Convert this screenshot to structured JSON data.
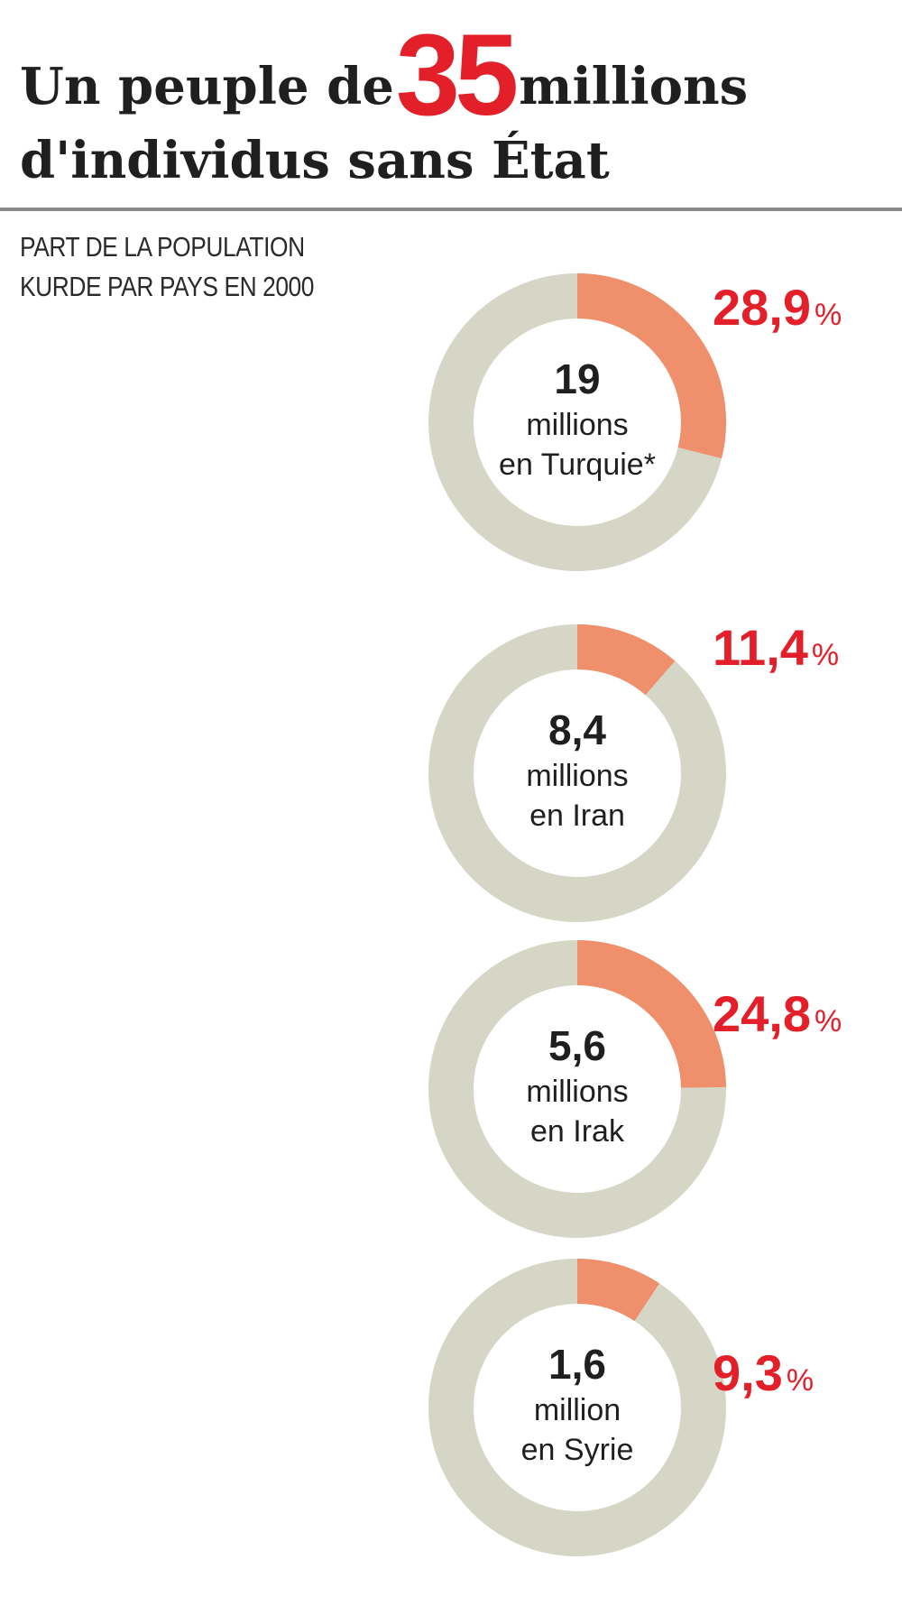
{
  "header": {
    "title_part1": "Un peuple de",
    "title_number": "35",
    "title_part2": "millions",
    "title_line2": "d'individus sans État",
    "subtitle_line1": "PART DE LA POPULATION",
    "subtitle_line2": "KURDE PAR PAYS EN 2000"
  },
  "colors": {
    "accent": "#e3202a",
    "slice": "#ef8f6b",
    "ring": "#d6d6c7",
    "text": "#1f1f1f"
  },
  "chart_data": {
    "type": "pie",
    "title": "Un peuple de 35 millions d'individus sans État",
    "subtitle": "PART DE LA POPULATION KURDE PAR PAYS EN 2000",
    "items": [
      {
        "country": "Turquie",
        "population_number": "19",
        "unit": "millions",
        "place": "en Turquie*",
        "share_percent": 28.9,
        "percent_label": "28,9"
      },
      {
        "country": "Iran",
        "population_number": "8,4",
        "unit": "millions",
        "place": "en Iran",
        "share_percent": 11.4,
        "percent_label": "11,4"
      },
      {
        "country": "Irak",
        "population_number": "5,6",
        "unit": "millions",
        "place": "en Irak",
        "share_percent": 24.8,
        "percent_label": "24,8"
      },
      {
        "country": "Syrie",
        "population_number": "1,6",
        "unit": "million",
        "place": "en Syrie",
        "share_percent": 9.3,
        "percent_label": "9,3"
      }
    ],
    "percent_unit": "%"
  }
}
